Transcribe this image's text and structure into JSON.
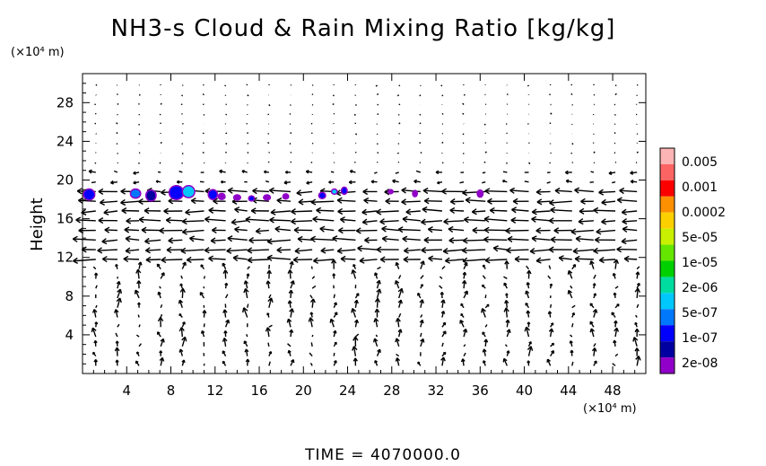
{
  "chart_data": {
    "type": "contour-vector",
    "title": "NH3-s Cloud & Rain Mixing Ratio [kg/kg]",
    "ylabel": "Height",
    "xunit": "(×10⁴ m)",
    "yunit": "(×10⁴ m)",
    "xlim": [
      0,
      51
    ],
    "ylim": [
      0,
      31
    ],
    "xticks": [
      4,
      8,
      12,
      16,
      20,
      24,
      28,
      32,
      36,
      40,
      44,
      48
    ],
    "yticks": [
      4,
      8,
      12,
      16,
      20,
      24,
      28
    ],
    "footer": "TIME = 4070000.0",
    "colorbar": {
      "labels": [
        "0.005",
        "0.001",
        "0.0002",
        "5e-05",
        "1e-05",
        "2e-06",
        "5e-07",
        "1e-07",
        "2e-08"
      ],
      "colors": [
        "#fcb4b4",
        "#fc6464",
        "#fc0000",
        "#fc9000",
        "#fcd000",
        "#c8f000",
        "#64e600",
        "#00d000",
        "#00dca0",
        "#00c8fc",
        "#0078fc",
        "#0000fc",
        "#0000a0",
        "#9000c8"
      ]
    },
    "cloud_blobs": [
      {
        "x": 0.6,
        "y": 18.5,
        "w": 0.9,
        "h": 1.0,
        "c": "#0000fc"
      },
      {
        "x": 4.8,
        "y": 18.6,
        "w": 0.8,
        "h": 0.8,
        "c": "#0078fc"
      },
      {
        "x": 6.2,
        "y": 18.4,
        "w": 0.8,
        "h": 1.0,
        "c": "#0000a0"
      },
      {
        "x": 8.5,
        "y": 18.7,
        "w": 1.2,
        "h": 1.3,
        "c": "#0000fc"
      },
      {
        "x": 9.6,
        "y": 18.8,
        "w": 1.0,
        "h": 1.1,
        "c": "#00c8fc"
      },
      {
        "x": 11.8,
        "y": 18.5,
        "w": 0.7,
        "h": 0.9,
        "c": "#0000fc"
      },
      {
        "x": 12.6,
        "y": 18.3,
        "w": 0.5,
        "h": 0.5,
        "c": "#9000c8"
      },
      {
        "x": 14.0,
        "y": 18.2,
        "w": 0.5,
        "h": 0.4,
        "c": "#9000c8"
      },
      {
        "x": 15.3,
        "y": 18.1,
        "w": 0.4,
        "h": 0.4,
        "c": "#0000fc"
      },
      {
        "x": 16.7,
        "y": 18.2,
        "w": 0.5,
        "h": 0.4,
        "c": "#9000c8"
      },
      {
        "x": 18.4,
        "y": 18.3,
        "w": 0.4,
        "h": 0.4,
        "c": "#9000c8"
      },
      {
        "x": 21.7,
        "y": 18.4,
        "w": 0.5,
        "h": 0.5,
        "c": "#0000fc"
      },
      {
        "x": 22.8,
        "y": 18.8,
        "w": 0.4,
        "h": 0.4,
        "c": "#00c8fc"
      },
      {
        "x": 23.7,
        "y": 18.9,
        "w": 0.4,
        "h": 0.6,
        "c": "#0000fc"
      },
      {
        "x": 27.9,
        "y": 18.8,
        "w": 0.3,
        "h": 0.3,
        "c": "#9000c8"
      },
      {
        "x": 30.1,
        "y": 18.6,
        "w": 0.3,
        "h": 0.5,
        "c": "#9000c8"
      },
      {
        "x": 36.0,
        "y": 18.6,
        "w": 0.4,
        "h": 0.6,
        "c": "#9000c8"
      }
    ]
  }
}
